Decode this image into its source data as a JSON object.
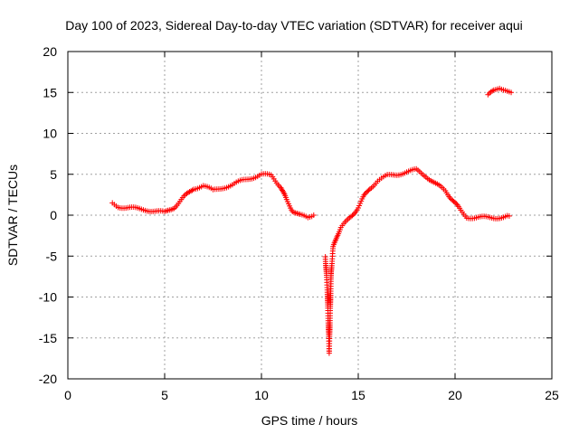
{
  "chart_data": {
    "type": "scatter",
    "title": "Day 100 of 2023, Sidereal Day-to-day VTEC variation (SDTVAR) for receiver aqui",
    "xlabel": "GPS time / hours",
    "ylabel": "SDTVAR / TECUs",
    "xlim": [
      0,
      25
    ],
    "ylim": [
      -20,
      20
    ],
    "grid": true,
    "marker": "+",
    "marker_color": "#ff0000",
    "xticks": [
      {
        "value": 0,
        "label": "0"
      },
      {
        "value": 5,
        "label": "5"
      },
      {
        "value": 10,
        "label": "10"
      },
      {
        "value": 15,
        "label": "15"
      },
      {
        "value": 20,
        "label": "20"
      },
      {
        "value": 25,
        "label": "25"
      }
    ],
    "yticks": [
      {
        "value": -20,
        "label": "-20"
      },
      {
        "value": -15,
        "label": "-15"
      },
      {
        "value": -10,
        "label": "-10"
      },
      {
        "value": -5,
        "label": "-5"
      },
      {
        "value": 0,
        "label": "0"
      },
      {
        "value": 5,
        "label": "5"
      },
      {
        "value": 10,
        "label": "10"
      },
      {
        "value": 15,
        "label": "15"
      },
      {
        "value": 20,
        "label": "20"
      }
    ],
    "series": [
      {
        "name": "SDTVAR",
        "segments": [
          [
            [
              2.3,
              1.5
            ],
            [
              2.6,
              1.1
            ],
            [
              3.0,
              0.9
            ],
            [
              3.5,
              0.8
            ],
            [
              4.0,
              0.7
            ],
            [
              4.5,
              0.5
            ],
            [
              5.0,
              0.3
            ],
            [
              5.5,
              1.0
            ],
            [
              6.0,
              2.2
            ],
            [
              6.5,
              3.3
            ],
            [
              7.0,
              3.6
            ],
            [
              7.5,
              3.0
            ],
            [
              8.0,
              3.4
            ],
            [
              8.5,
              3.7
            ],
            [
              9.0,
              4.2
            ],
            [
              9.5,
              4.6
            ],
            [
              10.0,
              5.0
            ],
            [
              10.5,
              4.8
            ],
            [
              11.0,
              3.5
            ],
            [
              11.3,
              1.8
            ],
            [
              11.6,
              0.6
            ],
            [
              12.0,
              0.0
            ],
            [
              12.4,
              -0.4
            ],
            [
              12.7,
              0.0
            ]
          ],
          [
            [
              13.3,
              -5.0
            ],
            [
              13.4,
              -9.0
            ],
            [
              13.45,
              -13.0
            ],
            [
              13.5,
              -16.7
            ],
            [
              13.55,
              -12.0
            ],
            [
              13.6,
              -7.0
            ],
            [
              13.7,
              -4.0
            ],
            [
              13.9,
              -2.5
            ],
            [
              14.1,
              -1.5
            ],
            [
              14.4,
              -0.8
            ],
            [
              14.7,
              0.0
            ],
            [
              15.0,
              1.0
            ],
            [
              15.3,
              2.3
            ],
            [
              15.6,
              3.3
            ],
            [
              16.0,
              4.2
            ],
            [
              16.5,
              4.8
            ],
            [
              17.0,
              5.0
            ],
            [
              17.5,
              5.3
            ],
            [
              18.0,
              5.5
            ],
            [
              18.5,
              4.8
            ],
            [
              19.0,
              3.8
            ],
            [
              19.5,
              3.0
            ],
            [
              20.0,
              1.5
            ],
            [
              20.3,
              0.5
            ],
            [
              20.6,
              -0.2
            ],
            [
              21.0,
              -0.3
            ],
            [
              21.5,
              -0.3
            ],
            [
              22.0,
              -0.3
            ],
            [
              22.5,
              -0.2
            ],
            [
              22.8,
              -0.1
            ]
          ],
          [
            [
              21.7,
              14.6
            ],
            [
              22.0,
              15.2
            ],
            [
              22.3,
              15.6
            ],
            [
              22.6,
              15.4
            ],
            [
              22.9,
              15.0
            ]
          ]
        ]
      }
    ]
  }
}
